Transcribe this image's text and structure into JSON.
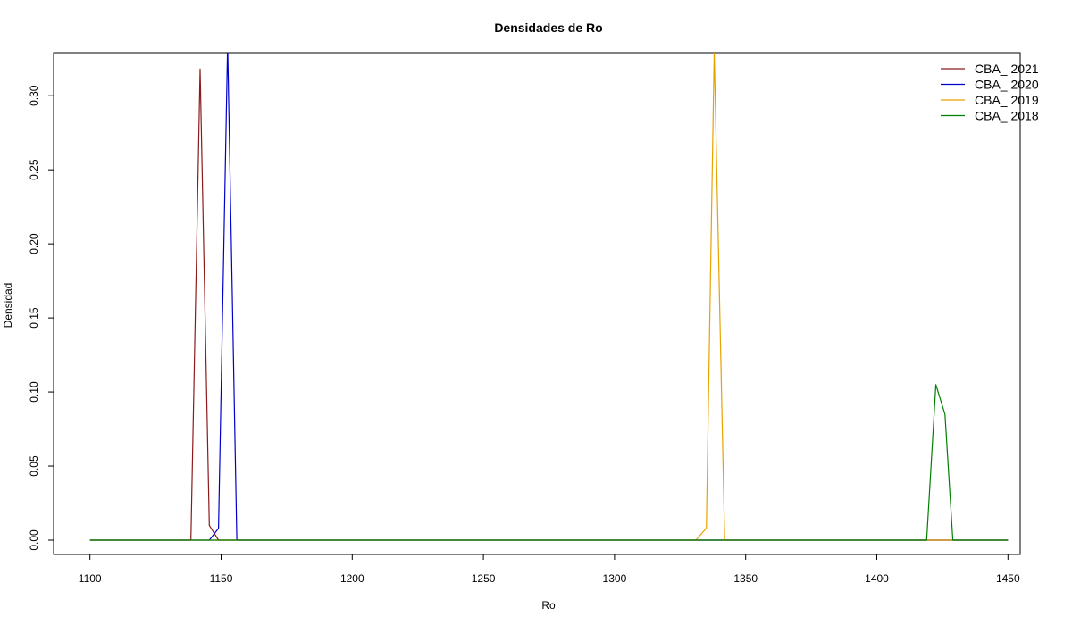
{
  "chart_data": {
    "type": "line",
    "title": "Densidades de Ro",
    "xlabel": "Ro",
    "ylabel": "Densidad",
    "xlim": [
      1100,
      1450
    ],
    "ylim": [
      0,
      0.33
    ],
    "x_ticks": [
      1100,
      1150,
      1200,
      1250,
      1300,
      1350,
      1400,
      1450
    ],
    "y_ticks": [
      0.0,
      0.05,
      0.1,
      0.15,
      0.2,
      0.25,
      0.3
    ],
    "y_tick_labels": [
      "0.00",
      "0.05",
      "0.10",
      "0.15",
      "0.20",
      "0.25",
      "0.30"
    ],
    "legend_position": "top-right",
    "grid": false,
    "series": [
      {
        "name": "CBA_ 2021",
        "color": "#8B1A1A",
        "points": [
          [
            1100,
            0
          ],
          [
            1138.5,
            0
          ],
          [
            1142.0,
            0.318
          ],
          [
            1145.5,
            0.01
          ],
          [
            1149,
            0
          ],
          [
            1450,
            0
          ]
        ]
      },
      {
        "name": "CBA_ 2020",
        "color": "#0000CC",
        "points": [
          [
            1100,
            0
          ],
          [
            1145.5,
            0
          ],
          [
            1149,
            0.008
          ],
          [
            1152.5,
            0.335
          ],
          [
            1156,
            0
          ],
          [
            1450,
            0
          ]
        ]
      },
      {
        "name": "CBA_ 2019",
        "color": "#E8A200",
        "points": [
          [
            1100,
            0
          ],
          [
            1331,
            0
          ],
          [
            1335,
            0.008
          ],
          [
            1338,
            0.33
          ],
          [
            1342,
            0
          ],
          [
            1450,
            0
          ]
        ]
      },
      {
        "name": "CBA_ 2018",
        "color": "#008000",
        "points": [
          [
            1100,
            0
          ],
          [
            1419,
            0
          ],
          [
            1422.5,
            0.105
          ],
          [
            1426,
            0.085
          ],
          [
            1429,
            0
          ],
          [
            1450,
            0
          ]
        ]
      }
    ]
  }
}
